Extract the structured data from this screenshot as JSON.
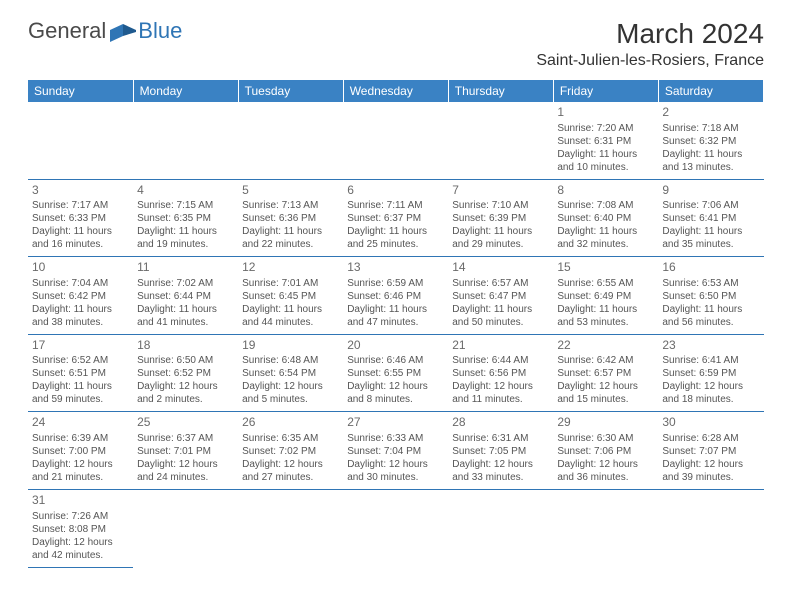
{
  "logo": {
    "text1": "General",
    "text2": "Blue"
  },
  "title": "March 2024",
  "location": "Saint-Julien-les-Rosiers, France",
  "colors": {
    "headerBg": "#3a82c4",
    "headerText": "#ffffff",
    "border": "#2f75b5",
    "cellText": "#555555",
    "logoGray": "#4a4a4a",
    "logoBlue": "#2f75b5"
  },
  "dayHeaders": [
    "Sunday",
    "Monday",
    "Tuesday",
    "Wednesday",
    "Thursday",
    "Friday",
    "Saturday"
  ],
  "weeks": [
    [
      null,
      null,
      null,
      null,
      null,
      {
        "n": "1",
        "sr": "7:20 AM",
        "ss": "6:31 PM",
        "dlh": "11",
        "dlm": "10"
      },
      {
        "n": "2",
        "sr": "7:18 AM",
        "ss": "6:32 PM",
        "dlh": "11",
        "dlm": "13"
      }
    ],
    [
      {
        "n": "3",
        "sr": "7:17 AM",
        "ss": "6:33 PM",
        "dlh": "11",
        "dlm": "16"
      },
      {
        "n": "4",
        "sr": "7:15 AM",
        "ss": "6:35 PM",
        "dlh": "11",
        "dlm": "19"
      },
      {
        "n": "5",
        "sr": "7:13 AM",
        "ss": "6:36 PM",
        "dlh": "11",
        "dlm": "22"
      },
      {
        "n": "6",
        "sr": "7:11 AM",
        "ss": "6:37 PM",
        "dlh": "11",
        "dlm": "25"
      },
      {
        "n": "7",
        "sr": "7:10 AM",
        "ss": "6:39 PM",
        "dlh": "11",
        "dlm": "29"
      },
      {
        "n": "8",
        "sr": "7:08 AM",
        "ss": "6:40 PM",
        "dlh": "11",
        "dlm": "32"
      },
      {
        "n": "9",
        "sr": "7:06 AM",
        "ss": "6:41 PM",
        "dlh": "11",
        "dlm": "35"
      }
    ],
    [
      {
        "n": "10",
        "sr": "7:04 AM",
        "ss": "6:42 PM",
        "dlh": "11",
        "dlm": "38"
      },
      {
        "n": "11",
        "sr": "7:02 AM",
        "ss": "6:44 PM",
        "dlh": "11",
        "dlm": "41"
      },
      {
        "n": "12",
        "sr": "7:01 AM",
        "ss": "6:45 PM",
        "dlh": "11",
        "dlm": "44"
      },
      {
        "n": "13",
        "sr": "6:59 AM",
        "ss": "6:46 PM",
        "dlh": "11",
        "dlm": "47"
      },
      {
        "n": "14",
        "sr": "6:57 AM",
        "ss": "6:47 PM",
        "dlh": "11",
        "dlm": "50"
      },
      {
        "n": "15",
        "sr": "6:55 AM",
        "ss": "6:49 PM",
        "dlh": "11",
        "dlm": "53"
      },
      {
        "n": "16",
        "sr": "6:53 AM",
        "ss": "6:50 PM",
        "dlh": "11",
        "dlm": "56"
      }
    ],
    [
      {
        "n": "17",
        "sr": "6:52 AM",
        "ss": "6:51 PM",
        "dlh": "11",
        "dlm": "59"
      },
      {
        "n": "18",
        "sr": "6:50 AM",
        "ss": "6:52 PM",
        "dlh": "12",
        "dlm": "2"
      },
      {
        "n": "19",
        "sr": "6:48 AM",
        "ss": "6:54 PM",
        "dlh": "12",
        "dlm": "5"
      },
      {
        "n": "20",
        "sr": "6:46 AM",
        "ss": "6:55 PM",
        "dlh": "12",
        "dlm": "8"
      },
      {
        "n": "21",
        "sr": "6:44 AM",
        "ss": "6:56 PM",
        "dlh": "12",
        "dlm": "11"
      },
      {
        "n": "22",
        "sr": "6:42 AM",
        "ss": "6:57 PM",
        "dlh": "12",
        "dlm": "15"
      },
      {
        "n": "23",
        "sr": "6:41 AM",
        "ss": "6:59 PM",
        "dlh": "12",
        "dlm": "18"
      }
    ],
    [
      {
        "n": "24",
        "sr": "6:39 AM",
        "ss": "7:00 PM",
        "dlh": "12",
        "dlm": "21"
      },
      {
        "n": "25",
        "sr": "6:37 AM",
        "ss": "7:01 PM",
        "dlh": "12",
        "dlm": "24"
      },
      {
        "n": "26",
        "sr": "6:35 AM",
        "ss": "7:02 PM",
        "dlh": "12",
        "dlm": "27"
      },
      {
        "n": "27",
        "sr": "6:33 AM",
        "ss": "7:04 PM",
        "dlh": "12",
        "dlm": "30"
      },
      {
        "n": "28",
        "sr": "6:31 AM",
        "ss": "7:05 PM",
        "dlh": "12",
        "dlm": "33"
      },
      {
        "n": "29",
        "sr": "6:30 AM",
        "ss": "7:06 PM",
        "dlh": "12",
        "dlm": "36"
      },
      {
        "n": "30",
        "sr": "6:28 AM",
        "ss": "7:07 PM",
        "dlh": "12",
        "dlm": "39"
      }
    ],
    [
      {
        "n": "31",
        "sr": "7:26 AM",
        "ss": "8:08 PM",
        "dlh": "12",
        "dlm": "42"
      },
      "blank",
      "blank",
      "blank",
      "blank",
      "blank",
      "blank"
    ]
  ]
}
